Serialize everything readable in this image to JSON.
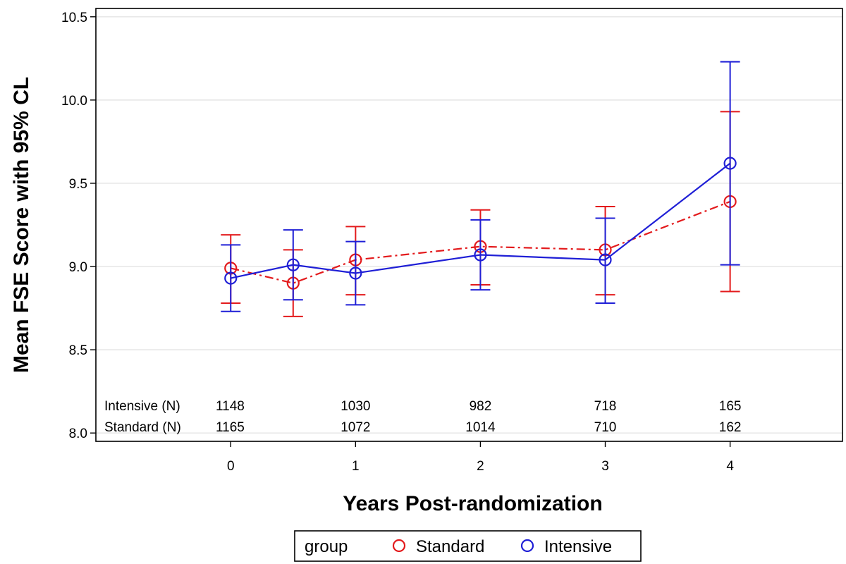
{
  "chart_data": {
    "type": "line",
    "xlabel": "Years Post-randomization",
    "ylabel": "Mean FSE Score with 95% CL",
    "xlim": [
      -1.08,
      4.9
    ],
    "ylim": [
      7.95,
      10.55
    ],
    "xticks": [
      0,
      1,
      2,
      3,
      4
    ],
    "xtick_labels": [
      "0",
      "1",
      "2",
      "3",
      "4"
    ],
    "yticks": [
      8.0,
      8.5,
      9.0,
      9.5,
      10.0,
      10.5
    ],
    "ytick_labels": [
      "8.0",
      "8.5",
      "9.0",
      "9.5",
      "10.0",
      "10.5"
    ],
    "grid": "horizontal",
    "series": [
      {
        "name": "Standard",
        "color": "#e31a1c",
        "line_style": "dash-dot",
        "marker": "open-circle",
        "x": [
          0,
          0.5,
          1,
          2,
          3,
          4
        ],
        "y": [
          8.99,
          8.9,
          9.04,
          9.12,
          9.1,
          9.39
        ],
        "lower": [
          8.78,
          8.7,
          8.83,
          8.89,
          8.83,
          8.85
        ],
        "upper": [
          9.19,
          9.1,
          9.24,
          9.34,
          9.36,
          9.93
        ]
      },
      {
        "name": "Intensive",
        "color": "#1f1fd6",
        "line_style": "solid",
        "marker": "open-circle",
        "x": [
          0,
          0.5,
          1,
          2,
          3,
          4
        ],
        "y": [
          8.93,
          9.01,
          8.96,
          9.07,
          9.04,
          9.62
        ],
        "lower": [
          8.73,
          8.8,
          8.77,
          8.86,
          8.78,
          9.01
        ],
        "upper": [
          9.13,
          9.22,
          9.15,
          9.28,
          9.29,
          10.23
        ]
      }
    ],
    "counts": {
      "x": [
        0,
        1,
        2,
        3,
        4
      ],
      "rows": [
        {
          "label": "Intensive (N)",
          "values": [
            "1148",
            "1030",
            "982",
            "718",
            "165"
          ]
        },
        {
          "label": "Standard (N)",
          "values": [
            "1165",
            "1072",
            "1014",
            "710",
            "162"
          ]
        }
      ]
    },
    "legend": {
      "title": "group",
      "placement": "bottom-center",
      "entries": [
        {
          "label": "Standard",
          "color": "#e31a1c"
        },
        {
          "label": "Intensive",
          "color": "#1f1fd6"
        }
      ]
    }
  }
}
